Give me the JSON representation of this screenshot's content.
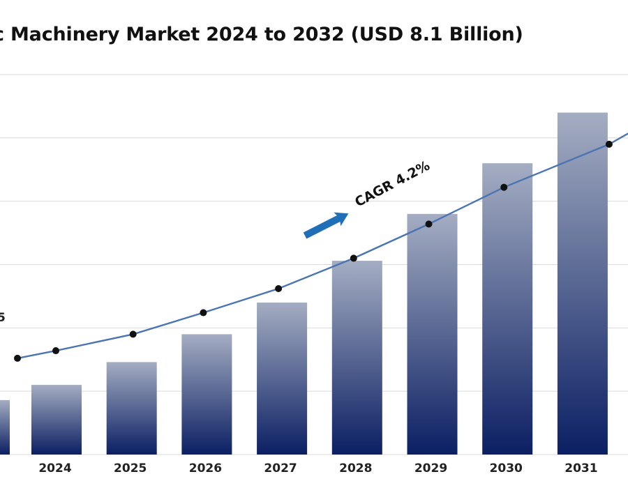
{
  "chart_data": {
    "type": "bar",
    "title": "c Machinery Market 2024 to 2032 (USD 8.1 Billion)",
    "categories": [
      "2024",
      "2025",
      "2026",
      "2027",
      "2028",
      "2029",
      "2030",
      "2031"
    ],
    "values": [
      5.55,
      5.73,
      5.95,
      6.2,
      6.53,
      6.9,
      7.3,
      7.7
    ],
    "trend_line": [
      5.82,
      5.95,
      6.12,
      6.31,
      6.55,
      6.82,
      7.11,
      7.45
    ],
    "grid": true,
    "colors": {
      "bar_top": "#a4adc2",
      "bar_bottom": "#0b1f63",
      "line": "#4a74b4",
      "marker": "#111111",
      "arrow": "#1f6fb8",
      "grid": "#d9d9d9"
    },
    "annotations": {
      "cagr": "CAGR 4.2%",
      "left_edge_value": "5"
    }
  }
}
